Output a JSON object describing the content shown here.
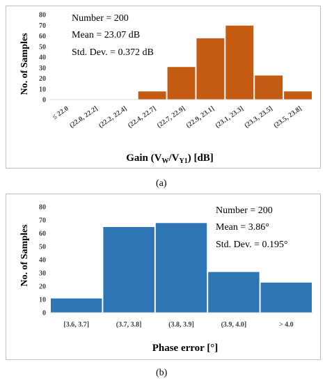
{
  "chart_data": [
    {
      "type": "bar",
      "panel_label": "(a)",
      "color": "#C55A11",
      "categories": [
        "≤ 22.0",
        "(22.0, 22.2]",
        "(22.2, 22.4]",
        "(22.4, 22.7]",
        "(22.7, 22.9]",
        "(22.9, 23.1]",
        "(23.1, 23.3]",
        "(23.3, 23.5]",
        "(23.5, 23.8]"
      ],
      "values": [
        0,
        0,
        0,
        8,
        31,
        58,
        70,
        23,
        8
      ],
      "ylabel": "No. of Samples",
      "xlabel": "Gain (V",
      "xlabel_sub1": "W",
      "xlabel_mid": "/V",
      "xlabel_sub2": "Y1",
      "xlabel_end": ") [dB]",
      "ylim": [
        0,
        80
      ],
      "yticks": [
        0,
        10,
        20,
        30,
        40,
        50,
        60,
        70,
        80
      ],
      "annotations": [
        "Number = 200",
        "Mean = 23.07 dB",
        "Std. Dev. = 0.372 dB"
      ]
    },
    {
      "type": "bar",
      "panel_label": "(b)",
      "color": "#2E75B6",
      "categories": [
        "[3.6, 3.7]",
        "(3.7, 3.8]",
        "(3.8, 3.9]",
        "(3.9, 4.0]",
        "> 4.0"
      ],
      "values": [
        11,
        65,
        68,
        31,
        23
      ],
      "ylabel": "No. of Samples",
      "xlabel": "Phase error [°]",
      "ylim": [
        0,
        80
      ],
      "yticks": [
        0,
        10,
        20,
        30,
        40,
        50,
        60,
        70,
        80
      ],
      "annotations": [
        "Number = 200",
        "Mean = 3.86°",
        "Std. Dev. = 0.195°"
      ]
    }
  ]
}
